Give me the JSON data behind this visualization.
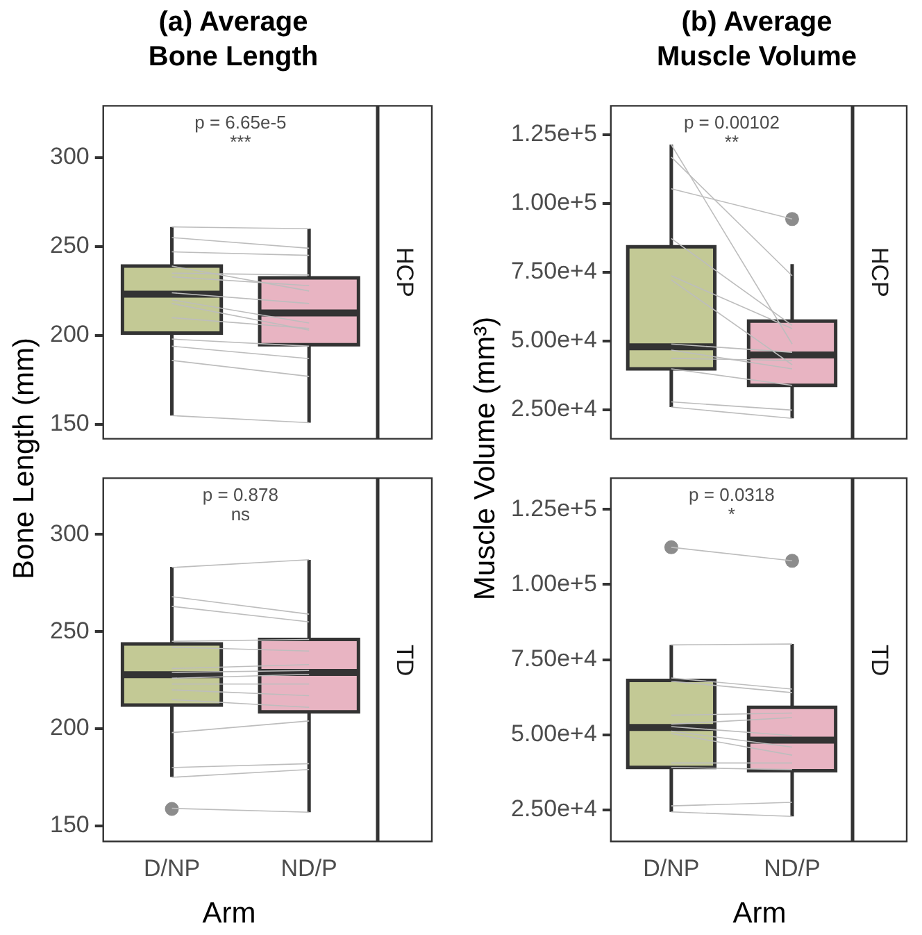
{
  "chart_data": [
    {
      "type": "box",
      "title": "(a) Average Bone Length",
      "ylabel": "Bone Length (mm)",
      "subtitle": "HCP",
      "tick_labels": "y",
      "categories": [
        "D/NP",
        "ND/P"
      ],
      "colors": [
        "#c3c995",
        "#e8b4c2"
      ],
      "ylim": [
        142,
        329
      ],
      "yticks": [
        150,
        200,
        250,
        300
      ],
      "annotations": [
        "p = 6.65e-5",
        "***"
      ],
      "boxes": [
        {
          "low": 155,
          "q1": 201.4,
          "median": 223.2,
          "q3": 239,
          "high": 261
        },
        {
          "low": 151,
          "q1": 194.8,
          "median": 212.7,
          "q3": 232.4,
          "high": 260
        }
      ],
      "series": [
        {
          "type": "line",
          "color": "#bdbdbd",
          "x": [
            "D/NP",
            "ND/P"
          ],
          "values": [
            261,
            260
          ]
        },
        {
          "type": "line",
          "color": "#bdbdbd",
          "x": [
            "D/NP",
            "ND/P"
          ],
          "values": [
            255,
            249
          ]
        },
        {
          "type": "line",
          "color": "#bdbdbd",
          "x": [
            "D/NP",
            "ND/P"
          ],
          "values": [
            247,
            245
          ]
        },
        {
          "type": "line",
          "color": "#bdbdbd",
          "x": [
            "D/NP",
            "ND/P"
          ],
          "values": [
            239,
            225
          ]
        },
        {
          "type": "line",
          "color": "#bdbdbd",
          "x": [
            "D/NP",
            "ND/P"
          ],
          "values": [
            235,
            234
          ]
        },
        {
          "type": "line",
          "color": "#bdbdbd",
          "x": [
            "D/NP",
            "ND/P"
          ],
          "values": [
            233,
            228
          ]
        },
        {
          "type": "line",
          "color": "#bdbdbd",
          "x": [
            "D/NP",
            "ND/P"
          ],
          "values": [
            224,
            218
          ]
        },
        {
          "type": "line",
          "color": "#bdbdbd",
          "x": [
            "D/NP",
            "ND/P"
          ],
          "values": [
            220,
            207
          ]
        },
        {
          "type": "line",
          "color": "#bdbdbd",
          "x": [
            "D/NP",
            "ND/P"
          ],
          "values": [
            218,
            203
          ]
        },
        {
          "type": "line",
          "color": "#bdbdbd",
          "x": [
            "D/NP",
            "ND/P"
          ],
          "values": [
            210,
            204
          ]
        },
        {
          "type": "line",
          "color": "#bdbdbd",
          "x": [
            "D/NP",
            "ND/P"
          ],
          "values": [
            198,
            194
          ]
        },
        {
          "type": "line",
          "color": "#bdbdbd",
          "x": [
            "D/NP",
            "ND/P"
          ],
          "values": [
            194,
            187
          ]
        },
        {
          "type": "line",
          "color": "#bdbdbd",
          "x": [
            "D/NP",
            "ND/P"
          ],
          "values": [
            186,
            177
          ]
        },
        {
          "type": "line",
          "color": "#bdbdbd",
          "x": [
            "D/NP",
            "ND/P"
          ],
          "values": [
            155,
            151
          ]
        }
      ]
    },
    {
      "type": "box",
      "title": "(b) Average Muscle Volume",
      "ylabel": "Muscle Volume (mm³)",
      "subtitle": "HCP",
      "tick_labels": "y",
      "categories": [
        "D/NP",
        "ND/P"
      ],
      "colors": [
        "#c3c995",
        "#e8b4c2"
      ],
      "ylim": [
        14500,
        135400
      ],
      "yticks": [
        {
          "value": 25000,
          "label": "2.50e+4"
        },
        {
          "value": 50000,
          "label": "5.00e+4"
        },
        {
          "value": 75000,
          "label": "7.50e+4"
        },
        {
          "value": 100000,
          "label": "1.00e+5"
        },
        {
          "value": 125000,
          "label": "1.25e+5"
        }
      ],
      "annotations": [
        "p = 0.00102",
        "**"
      ],
      "boxes": [
        {
          "low": 26000,
          "q1": 39900,
          "median": 47900,
          "q3": 84200,
          "high": 121300
        },
        {
          "low": 21900,
          "q1": 33900,
          "median": 44900,
          "q3": 57200,
          "high": 77900,
          "outliers": [
            94300
          ]
        }
      ],
      "series": [
        {
          "type": "line",
          "color": "#bdbdbd",
          "x": [
            "D/NP",
            "ND/P"
          ],
          "values": [
            121300,
            48900
          ]
        },
        {
          "type": "line",
          "color": "#bdbdbd",
          "x": [
            "D/NP",
            "ND/P"
          ],
          "values": [
            116800,
            73700
          ]
        },
        {
          "type": "line",
          "color": "#bdbdbd",
          "x": [
            "D/NP",
            "ND/P"
          ],
          "values": [
            105300,
            94300
          ]
        },
        {
          "type": "line",
          "color": "#bdbdbd",
          "x": [
            "D/NP",
            "ND/P"
          ],
          "values": [
            87200,
            55700
          ]
        },
        {
          "type": "line",
          "color": "#bdbdbd",
          "x": [
            "D/NP",
            "ND/P"
          ],
          "values": [
            73700,
            54500
          ]
        },
        {
          "type": "line",
          "color": "#bdbdbd",
          "x": [
            "D/NP",
            "ND/P"
          ],
          "values": [
            72200,
            41400
          ]
        },
        {
          "type": "line",
          "color": "#bdbdbd",
          "x": [
            "D/NP",
            "ND/P"
          ],
          "values": [
            48900,
            45900
          ]
        },
        {
          "type": "line",
          "color": "#bdbdbd",
          "x": [
            "D/NP",
            "ND/P"
          ],
          "values": [
            46700,
            39900
          ]
        },
        {
          "type": "line",
          "color": "#bdbdbd",
          "x": [
            "D/NP",
            "ND/P"
          ],
          "values": [
            43700,
            42900
          ]
        },
        {
          "type": "line",
          "color": "#bdbdbd",
          "x": [
            "D/NP",
            "ND/P"
          ],
          "values": [
            39900,
            33900
          ]
        },
        {
          "type": "line",
          "color": "#bdbdbd",
          "x": [
            "D/NP",
            "ND/P"
          ],
          "values": [
            27900,
            24900
          ]
        },
        {
          "type": "line",
          "color": "#bdbdbd",
          "x": [
            "D/NP",
            "ND/P"
          ],
          "values": [
            26000,
            21900
          ]
        }
      ]
    },
    {
      "type": "box",
      "xlabel": "Arm",
      "subtitle": "TD",
      "categories": [
        "D/NP",
        "ND/P"
      ],
      "colors": [
        "#c3c995",
        "#e8b4c2"
      ],
      "ylim": [
        142,
        329
      ],
      "yticks": [
        150,
        200,
        250,
        300
      ],
      "annotations": [
        "p = 0.878",
        "ns"
      ],
      "boxes": [
        {
          "low": 175.2,
          "q1": 212.2,
          "median": 227.8,
          "q3": 243.7,
          "high": 283.4,
          "outliers": [
            158.7
          ]
        },
        {
          "low": 157,
          "q1": 208.7,
          "median": 229,
          "q3": 246,
          "high": 286.9
        }
      ],
      "series": [
        {
          "type": "line",
          "color": "#bdbdbd",
          "x": [
            "D/NP",
            "ND/P"
          ],
          "values": [
            283,
            287
          ]
        },
        {
          "type": "line",
          "color": "#bdbdbd",
          "x": [
            "D/NP",
            "ND/P"
          ],
          "values": [
            268,
            259
          ]
        },
        {
          "type": "line",
          "color": "#bdbdbd",
          "x": [
            "D/NP",
            "ND/P"
          ],
          "values": [
            263,
            255
          ]
        },
        {
          "type": "line",
          "color": "#bdbdbd",
          "x": [
            "D/NP",
            "ND/P"
          ],
          "values": [
            245,
            246
          ]
        },
        {
          "type": "line",
          "color": "#bdbdbd",
          "x": [
            "D/NP",
            "ND/P"
          ],
          "values": [
            242,
            240
          ]
        },
        {
          "type": "line",
          "color": "#bdbdbd",
          "x": [
            "D/NP",
            "ND/P"
          ],
          "values": [
            231,
            233
          ]
        },
        {
          "type": "line",
          "color": "#bdbdbd",
          "x": [
            "D/NP",
            "ND/P"
          ],
          "values": [
            229,
            230
          ]
        },
        {
          "type": "line",
          "color": "#bdbdbd",
          "x": [
            "D/NP",
            "ND/P"
          ],
          "values": [
            226,
            228
          ]
        },
        {
          "type": "line",
          "color": "#bdbdbd",
          "x": [
            "D/NP",
            "ND/P"
          ],
          "values": [
            223,
            223
          ]
        },
        {
          "type": "line",
          "color": "#bdbdbd",
          "x": [
            "D/NP",
            "ND/P"
          ],
          "values": [
            220,
            217
          ]
        },
        {
          "type": "line",
          "color": "#bdbdbd",
          "x": [
            "D/NP",
            "ND/P"
          ],
          "values": [
            215,
            211
          ]
        },
        {
          "type": "line",
          "color": "#bdbdbd",
          "x": [
            "D/NP",
            "ND/P"
          ],
          "values": [
            198,
            204
          ]
        },
        {
          "type": "line",
          "color": "#bdbdbd",
          "x": [
            "D/NP",
            "ND/P"
          ],
          "values": [
            180,
            182
          ]
        },
        {
          "type": "line",
          "color": "#bdbdbd",
          "x": [
            "D/NP",
            "ND/P"
          ],
          "values": [
            175,
            179
          ]
        },
        {
          "type": "line",
          "color": "#bdbdbd",
          "x": [
            "D/NP",
            "ND/P"
          ],
          "values": [
            159,
            157
          ]
        }
      ]
    },
    {
      "type": "box",
      "xlabel": "Arm",
      "subtitle": "TD",
      "categories": [
        "D/NP",
        "ND/P"
      ],
      "colors": [
        "#c3c995",
        "#e8b4c2"
      ],
      "ylim": [
        14500,
        135400
      ],
      "yticks": [
        {
          "value": 25000,
          "label": "2.50e+4"
        },
        {
          "value": 50000,
          "label": "5.00e+4"
        },
        {
          "value": 75000,
          "label": "7.50e+4"
        },
        {
          "value": 100000,
          "label": "1.00e+5"
        },
        {
          "value": 125000,
          "label": "1.25e+5"
        }
      ],
      "annotations": [
        "p = 0.0318",
        "*"
      ],
      "boxes": [
        {
          "low": 24300,
          "q1": 39100,
          "median": 52400,
          "q3": 68100,
          "high": 79900,
          "outliers": [
            112400
          ]
        },
        {
          "low": 22800,
          "q1": 38000,
          "median": 48200,
          "q3": 59100,
          "high": 80200,
          "outliers": [
            107900
          ]
        }
      ],
      "series": [
        {
          "type": "line",
          "color": "#bdbdbd",
          "x": [
            "D/NP",
            "ND/P"
          ],
          "values": [
            112400,
            107900
          ]
        },
        {
          "type": "line",
          "color": "#bdbdbd",
          "x": [
            "D/NP",
            "ND/P"
          ],
          "values": [
            79900,
            80200
          ]
        },
        {
          "type": "line",
          "color": "#bdbdbd",
          "x": [
            "D/NP",
            "ND/P"
          ],
          "values": [
            68900,
            65200
          ]
        },
        {
          "type": "line",
          "color": "#bdbdbd",
          "x": [
            "D/NP",
            "ND/P"
          ],
          "values": [
            67800,
            64000
          ]
        },
        {
          "type": "line",
          "color": "#bdbdbd",
          "x": [
            "D/NP",
            "ND/P"
          ],
          "values": [
            56500,
            57200
          ]
        },
        {
          "type": "line",
          "color": "#bdbdbd",
          "x": [
            "D/NP",
            "ND/P"
          ],
          "values": [
            53500,
            55700
          ]
        },
        {
          "type": "line",
          "color": "#bdbdbd",
          "x": [
            "D/NP",
            "ND/P"
          ],
          "values": [
            52700,
            49700
          ]
        },
        {
          "type": "line",
          "color": "#bdbdbd",
          "x": [
            "D/NP",
            "ND/P"
          ],
          "values": [
            51200,
            45900
          ]
        },
        {
          "type": "line",
          "color": "#bdbdbd",
          "x": [
            "D/NP",
            "ND/P"
          ],
          "values": [
            50400,
            43200
          ]
        },
        {
          "type": "line",
          "color": "#bdbdbd",
          "x": [
            "D/NP",
            "ND/P"
          ],
          "values": [
            40600,
            40600
          ]
        },
        {
          "type": "line",
          "color": "#bdbdbd",
          "x": [
            "D/NP",
            "ND/P"
          ],
          "values": [
            39100,
            38400
          ]
        },
        {
          "type": "line",
          "color": "#bdbdbd",
          "x": [
            "D/NP",
            "ND/P"
          ],
          "values": [
            26300,
            27500
          ]
        },
        {
          "type": "line",
          "color": "#bdbdbd",
          "x": [
            "D/NP",
            "ND/P"
          ],
          "values": [
            24300,
            22800
          ]
        }
      ]
    }
  ]
}
